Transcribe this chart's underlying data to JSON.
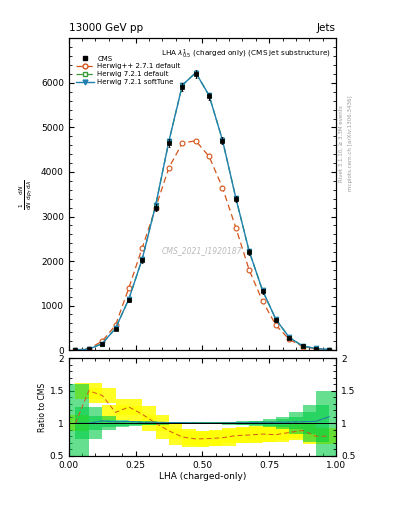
{
  "title": "13000 GeV pp",
  "title_right": "Jets",
  "plot_title": "LHA $\\lambda^1_{0.5}$ (charged only) (CMS jet substructure)",
  "xlabel": "LHA (charged-only)",
  "watermark": "CMS_2021_I1920187",
  "right_label_top": "Rivet 3.1.10, ≥ 3.3M events",
  "right_label_bot": "mcplots.cern.ch [arXiv:1306.3436]",
  "x_values": [
    0.025,
    0.075,
    0.125,
    0.175,
    0.225,
    0.275,
    0.325,
    0.375,
    0.425,
    0.475,
    0.525,
    0.575,
    0.625,
    0.675,
    0.725,
    0.775,
    0.825,
    0.875,
    0.925,
    0.975
  ],
  "cms_y": [
    5,
    20,
    140,
    480,
    1120,
    2020,
    3200,
    4650,
    5900,
    6200,
    5700,
    4700,
    3400,
    2200,
    1320,
    680,
    280,
    90,
    35,
    10
  ],
  "cms_yerr": [
    3,
    5,
    15,
    25,
    40,
    55,
    70,
    85,
    90,
    90,
    85,
    80,
    70,
    60,
    50,
    40,
    25,
    15,
    10,
    5
  ],
  "herwig_pp_y": [
    5,
    30,
    200,
    560,
    1400,
    2300,
    3200,
    4100,
    4650,
    4700,
    4350,
    3650,
    2750,
    1800,
    1100,
    560,
    240,
    80,
    28,
    8
  ],
  "herwig721d_y": [
    5,
    20,
    145,
    490,
    1150,
    2050,
    3250,
    4700,
    5950,
    6230,
    5720,
    4720,
    3420,
    2220,
    1340,
    690,
    285,
    92,
    36,
    11
  ],
  "herwig721s_y": [
    5,
    20,
    145,
    490,
    1150,
    2050,
    3250,
    4700,
    5950,
    6230,
    5720,
    4720,
    3420,
    2220,
    1340,
    690,
    285,
    92,
    36,
    11
  ],
  "ylim": [
    0,
    7000
  ],
  "ytick_vals": [
    0,
    1000,
    2000,
    3000,
    4000,
    5000,
    6000
  ],
  "ytick_labels": [
    "0",
    "1000",
    "2000",
    "3000",
    "4000",
    "5000",
    "6000"
  ],
  "ratio_ylim": [
    0.5,
    2.0
  ],
  "ratio_yticks": [
    0.5,
    1.0,
    1.5,
    2.0
  ],
  "color_cms": "#000000",
  "color_herwig_pp": "#d4541a",
  "color_herwig721d": "#3a9a3a",
  "color_herwig721s": "#2080b0",
  "band_yellow": "#ffff00",
  "band_green": "#00cc44"
}
